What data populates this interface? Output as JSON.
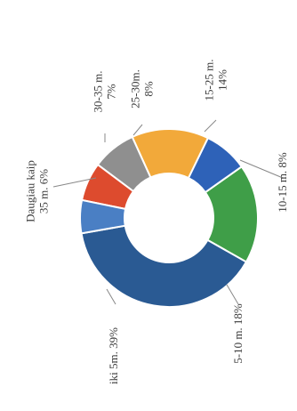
{
  "chart_data": {
    "type": "pie",
    "donut": true,
    "title": "",
    "slices": [
      {
        "label": "iki 5m 39%",
        "value": 39,
        "color": "#2a5a93"
      },
      {
        "label": "5-10 m. 18%",
        "value": 18,
        "color": "#3f9e48"
      },
      {
        "label": "10-15 m. 8%",
        "value": 8,
        "color": "#2e62b8"
      },
      {
        "label": "15-25 m. 14%",
        "value": 14,
        "color": "#f2a93a"
      },
      {
        "label": "25-30m. 8%",
        "value": 8,
        "color": "#8f8f8f"
      },
      {
        "label": "30-35 m. 7%",
        "value": 7,
        "color": "#dd4b2e"
      },
      {
        "label": "Daugiau kaip 35 m. 6%",
        "value": 6,
        "color": "#4a7fc4"
      }
    ]
  },
  "labels": [
    {
      "lines": [
        "iki 5m. 39%"
      ]
    },
    {
      "lines": [
        "5-10 m. 18%"
      ]
    },
    {
      "lines": [
        "10-15 m. 8%"
      ]
    },
    {
      "lines": [
        "15-25 m.",
        "14%"
      ]
    },
    {
      "lines": [
        "25-30m.",
        "8%"
      ]
    },
    {
      "lines": [
        "30-35 m.",
        "7%"
      ]
    },
    {
      "lines": [
        "Daugiau kaip",
        "35 m. 6%"
      ]
    }
  ]
}
